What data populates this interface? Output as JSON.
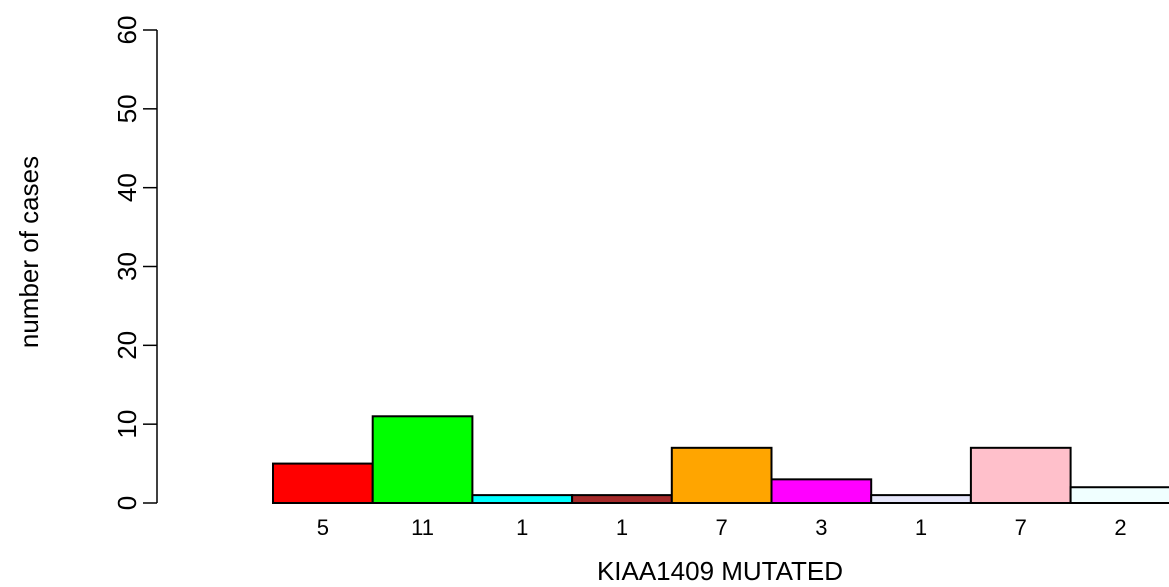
{
  "chart_data": {
    "type": "bar",
    "xlabel": "KIAA1409 MUTATED",
    "ylabel": "number of cases",
    "ylim": [
      0,
      60
    ],
    "yticks": [
      0,
      10,
      20,
      30,
      40,
      50,
      60
    ],
    "grid": false,
    "categories": [
      "5",
      "11",
      "1",
      "1",
      "7",
      "3",
      "1",
      "7",
      "2"
    ],
    "values": [
      5,
      11,
      1,
      1,
      7,
      3,
      1,
      7,
      2
    ],
    "colors": [
      "#ff0000",
      "#00ff00",
      "#00ffff",
      "#a52a2a",
      "#ffa500",
      "#ff00ff",
      "#e6e6fa",
      "#ffc0cb",
      "#f0ffff"
    ]
  }
}
